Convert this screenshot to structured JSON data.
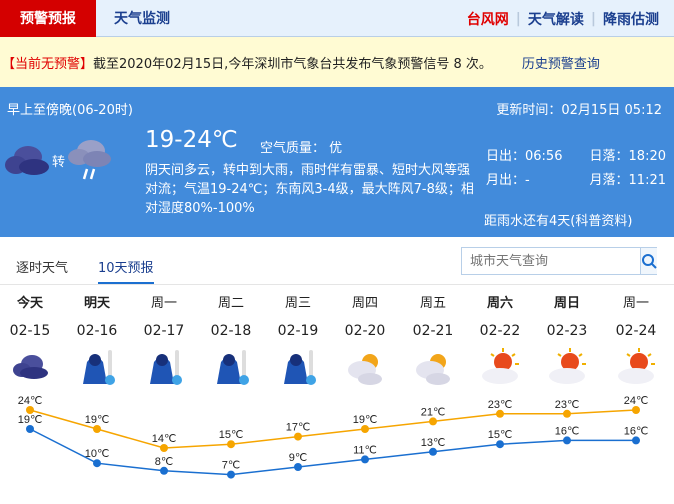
{
  "nav": {
    "active": "预警预报",
    "tab2": "天气监测",
    "links": [
      "台风网",
      "天气解读",
      "降雨估测"
    ]
  },
  "warning": {
    "status": "【当前无预警】",
    "text": "截至2020年02月15日,今年深圳市气象台共发布气象预警信号 8 次。",
    "history": "历史预警查询"
  },
  "current": {
    "period": "早上至傍晚(06-20时)",
    "update": "更新时间：02月15日 05:12",
    "turn": "转",
    "temp": "19-24℃",
    "air": "空气质量： 优",
    "desc": "阴天间多云，转中到大雨，雨时伴有雷暴、短时大风等强对流；气温19-24℃；东南风3-4级，最大阵风7-8级；相对湿度80%-100%",
    "sunrise": "日出：06:56",
    "sunset": "日落：18:20",
    "moonrise": "月出：-",
    "moonset": "月落：11:21",
    "rain": "距雨水还有4天(科普资料)",
    "icons": [
      "overcast-cloud-icon",
      "rain-cloud-icon"
    ]
  },
  "tabs": {
    "hourly": "逐时天气",
    "tenday": "10天预报",
    "search_placeholder": "城市天气查询"
  },
  "colors": {
    "high": "#f6a500",
    "low": "#1a6fd0",
    "accent_red": "#d40000",
    "panel": "#428bdb"
  },
  "chart_data": {
    "type": "line",
    "categories": [
      "02-15",
      "02-16",
      "02-17",
      "02-18",
      "02-19",
      "02-20",
      "02-21",
      "02-22",
      "02-23",
      "02-24"
    ],
    "weekdays": [
      "今天",
      "明天",
      "周一",
      "周二",
      "周三",
      "周四",
      "周五",
      "周六",
      "周日",
      "周一"
    ],
    "icons": [
      "overcast",
      "cold-rain",
      "cold-rain",
      "cold-rain",
      "cold-rain",
      "partly-cloudy",
      "partly-cloudy",
      "sunny-cloud",
      "sunny-cloud",
      "sunny-cloud"
    ],
    "unit": "℃",
    "series": [
      {
        "values": [
          24,
          19,
          14,
          15,
          17,
          19,
          21,
          23,
          23,
          24
        ]
      },
      {
        "values": [
          19,
          10,
          8,
          7,
          9,
          11,
          13,
          15,
          16,
          16
        ]
      }
    ]
  }
}
